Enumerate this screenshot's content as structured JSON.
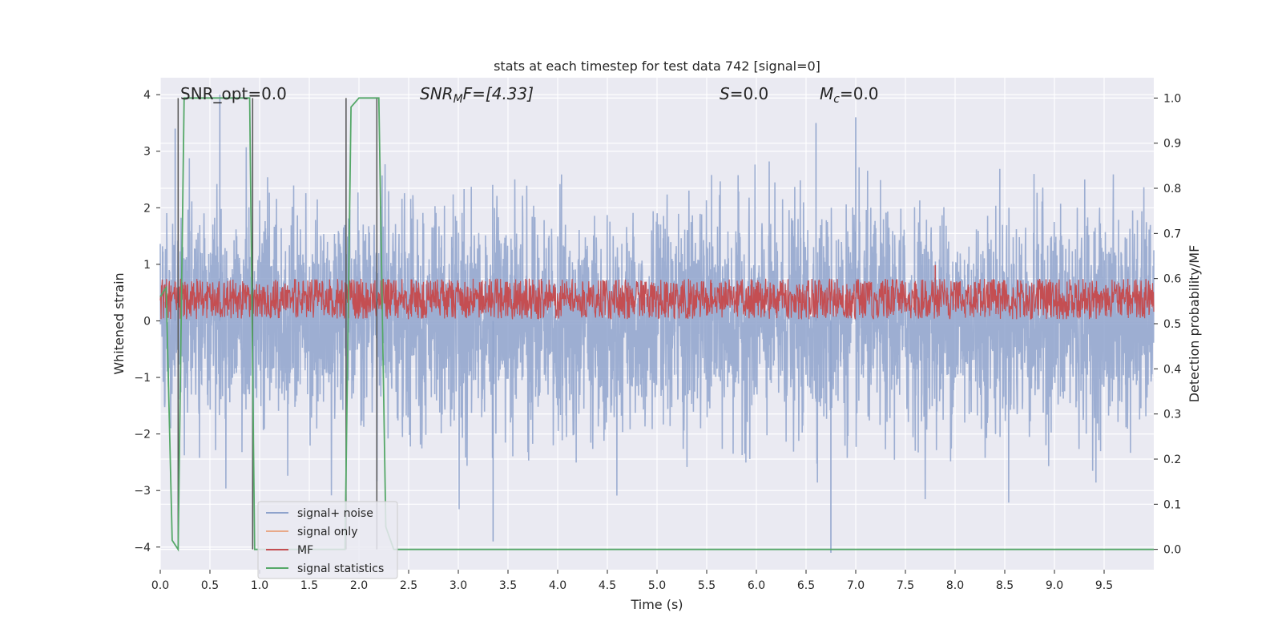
{
  "chart_data": {
    "type": "line",
    "title": "stats at each timestep for test data 742 [signal=0]",
    "xlabel": "Time (s)",
    "ylabel_left": "Whitened strain",
    "ylabel_right": "Detection probability/MF",
    "xlim": [
      0.0,
      10.0
    ],
    "ylim_left": [
      -4.4,
      4.3
    ],
    "ylim_right": [
      -0.045,
      1.045
    ],
    "x_ticks": [
      0.0,
      0.5,
      1.0,
      1.5,
      2.0,
      2.5,
      3.0,
      3.5,
      4.0,
      4.5,
      5.0,
      5.5,
      6.0,
      6.5,
      7.0,
      7.5,
      8.0,
      8.5,
      9.0,
      9.5
    ],
    "x_tick_labels": [
      "0.0",
      "0.5",
      "1.0",
      "1.5",
      "2.0",
      "2.5",
      "3.0",
      "3.5",
      "4.0",
      "4.5",
      "5.0",
      "5.5",
      "6.0",
      "6.5",
      "7.0",
      "7.5",
      "8.0",
      "8.5",
      "9.0",
      "9.5"
    ],
    "y_left_ticks": [
      4,
      3,
      2,
      1,
      0,
      -1,
      -2,
      -3,
      -4
    ],
    "y_left_tick_labels": [
      "4",
      "3",
      "2",
      "1",
      "0",
      "−1",
      "−2",
      "−3",
      "−4"
    ],
    "y_right_ticks": [
      1.0,
      0.9,
      0.8,
      0.7,
      0.6,
      0.5,
      0.4,
      0.3,
      0.2,
      0.1,
      0.0
    ],
    "y_right_tick_labels": [
      "1.0",
      "0.9",
      "0.8",
      "0.7",
      "0.6",
      "0.5",
      "0.4",
      "0.3",
      "0.2",
      "0.1",
      "0.0"
    ],
    "grid": true,
    "legend_position": "lower-left",
    "annotations": {
      "snr_opt": "SNR_opt=0.0",
      "snr_mf_main": "SNR",
      "snr_mf_sub": "M",
      "snr_mf_rest": "F=[4.33]",
      "s_var": "S",
      "s_rest": "=0.0",
      "mc_var": "M",
      "mc_sub": "c",
      "mc_rest": "=0.0"
    },
    "series": [
      {
        "name": "signal+ noise",
        "axis": "left",
        "color": "#8fa3cc",
        "description_values": "whitened noise, approx. amplitude within [-4.0, 4.0], dense trace from 0 to 10 s",
        "peaks": [
          {
            "x": 0.6,
            "y": 4.0
          },
          {
            "x": 3.35,
            "y": -3.9
          },
          {
            "x": 6.75,
            "y": -4.1
          },
          {
            "x": 7.0,
            "y": 3.6
          },
          {
            "x": 6.6,
            "y": 3.5
          },
          {
            "x": 0.15,
            "y": 3.4
          }
        ]
      },
      {
        "name": "signal only",
        "axis": "left",
        "color": "#e8a989",
        "values_note": "0 everywhere"
      },
      {
        "name": "MF",
        "axis": "right",
        "color": "#c44e52",
        "range": [
          0.51,
          0.6
        ],
        "peaks": [
          {
            "x": 7.8,
            "y": 0.63
          }
        ]
      },
      {
        "name": "signal statistics",
        "axis": "right",
        "color": "#55a868",
        "x": [
          0.0,
          0.06,
          0.12,
          0.18,
          0.24,
          0.3,
          0.5,
          0.7,
          0.9,
          0.95,
          1.0,
          1.8,
          1.86,
          1.92,
          2.0,
          2.1,
          2.2,
          2.27,
          2.35,
          3.0,
          5.0,
          7.0,
          9.0,
          10.0
        ],
        "y": [
          0.56,
          0.58,
          0.02,
          0.0,
          1.0,
          1.0,
          1.0,
          1.0,
          1.0,
          0.0,
          0.0,
          0.0,
          0.0,
          0.98,
          1.0,
          1.0,
          1.0,
          0.05,
          0.0,
          0.0,
          0.0,
          0.0,
          0.0,
          0.0
        ]
      }
    ],
    "vertical_markers": [
      0.18,
      0.93,
      1.87,
      2.18
    ]
  }
}
